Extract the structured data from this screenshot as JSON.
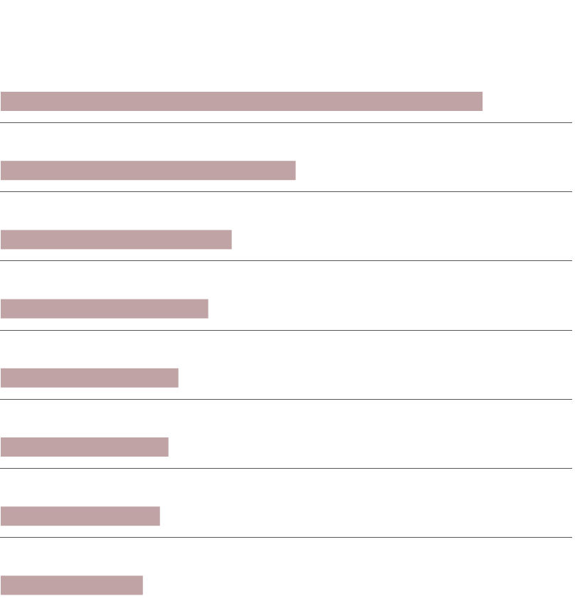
{
  "chart_data": {
    "type": "bar",
    "orientation": "horizontal",
    "categories": [
      null,
      null,
      null,
      null,
      null,
      null,
      null,
      null
    ],
    "values": [
      678,
      415,
      325,
      292,
      250,
      236,
      224,
      200
    ],
    "color": "#bfa3a5",
    "xlim": [
      0,
      804
    ]
  }
}
